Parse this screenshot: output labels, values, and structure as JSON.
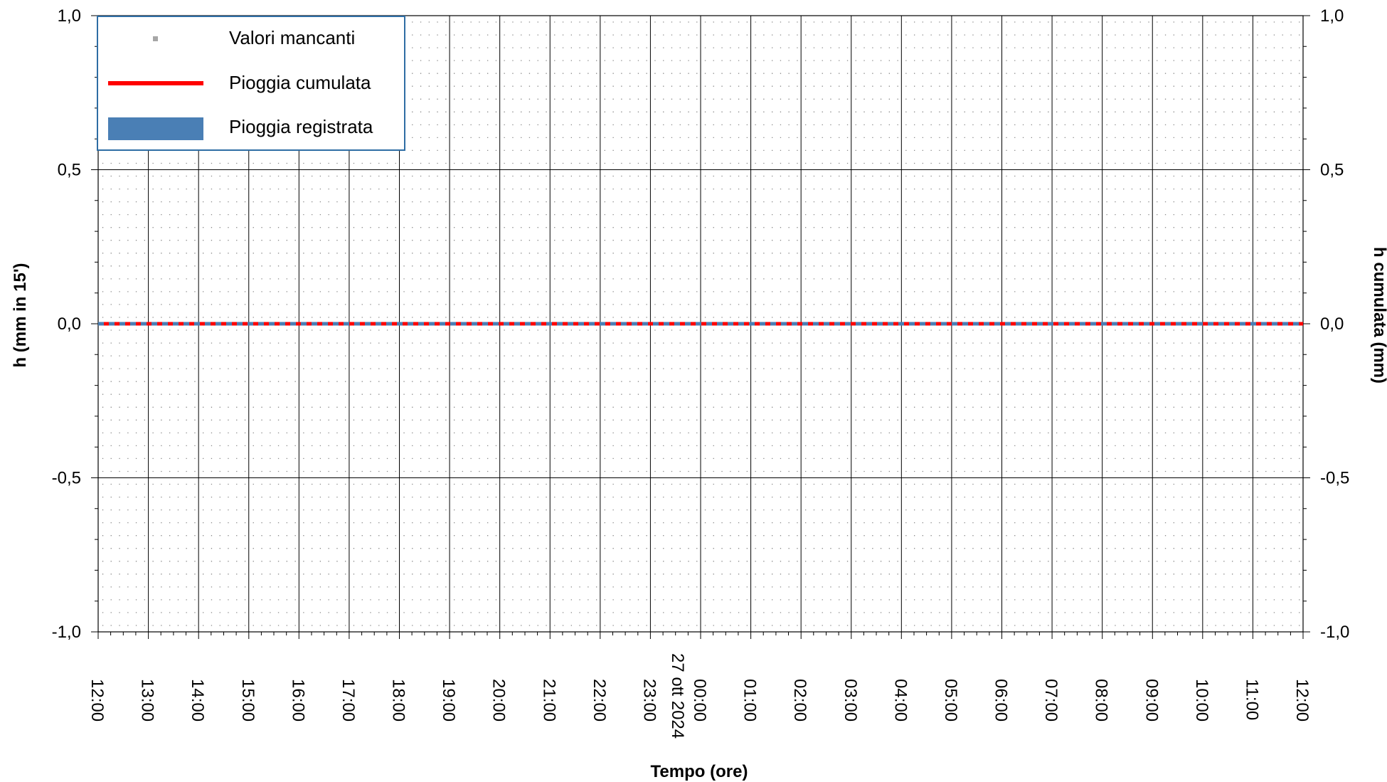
{
  "chart_data": {
    "type": "line",
    "title": "",
    "xlabel": "Tempo (ore)",
    "ylabel": "h (mm in 15')",
    "y2label": "h cumulata (mm)",
    "ylim": [
      -1.0,
      1.0
    ],
    "y2lim": [
      -1.0,
      1.0
    ],
    "y_ticks": [
      "1,0",
      "0,5",
      "0,0",
      "-0,5",
      "-1,0"
    ],
    "y2_ticks": [
      "1,0",
      "0,5",
      "0,0",
      "-0,5",
      "-1,0"
    ],
    "x_ticks": [
      "12:00",
      "13:00",
      "14:00",
      "15:00",
      "16:00",
      "17:00",
      "18:00",
      "19:00",
      "20:00",
      "21:00",
      "22:00",
      "23:00",
      "00:00",
      "01:00",
      "02:00",
      "03:00",
      "04:00",
      "05:00",
      "06:00",
      "07:00",
      "08:00",
      "09:00",
      "10:00",
      "11:00",
      "12:00"
    ],
    "date_label": "27 ott 2024",
    "grid": true,
    "legend_position": "top-left",
    "legend": [
      {
        "label": "Valori mancanti",
        "kind": "dot",
        "color": "#a6a6a6"
      },
      {
        "label": "Pioggia cumulata",
        "kind": "line",
        "color": "#ff0000"
      },
      {
        "label": "Pioggia registrata",
        "kind": "bar",
        "color": "#4a7fb5"
      }
    ],
    "series": [
      {
        "name": "Pioggia cumulata",
        "color": "#ff0000",
        "values": [
          0,
          0,
          0,
          0,
          0,
          0,
          0,
          0,
          0,
          0,
          0,
          0,
          0,
          0,
          0,
          0,
          0,
          0,
          0,
          0,
          0,
          0,
          0,
          0,
          0
        ]
      },
      {
        "name": "Pioggia registrata",
        "color": "#4a7fb5",
        "values": [
          0,
          0,
          0,
          0,
          0,
          0,
          0,
          0,
          0,
          0,
          0,
          0,
          0,
          0,
          0,
          0,
          0,
          0,
          0,
          0,
          0,
          0,
          0,
          0,
          0
        ]
      }
    ]
  }
}
